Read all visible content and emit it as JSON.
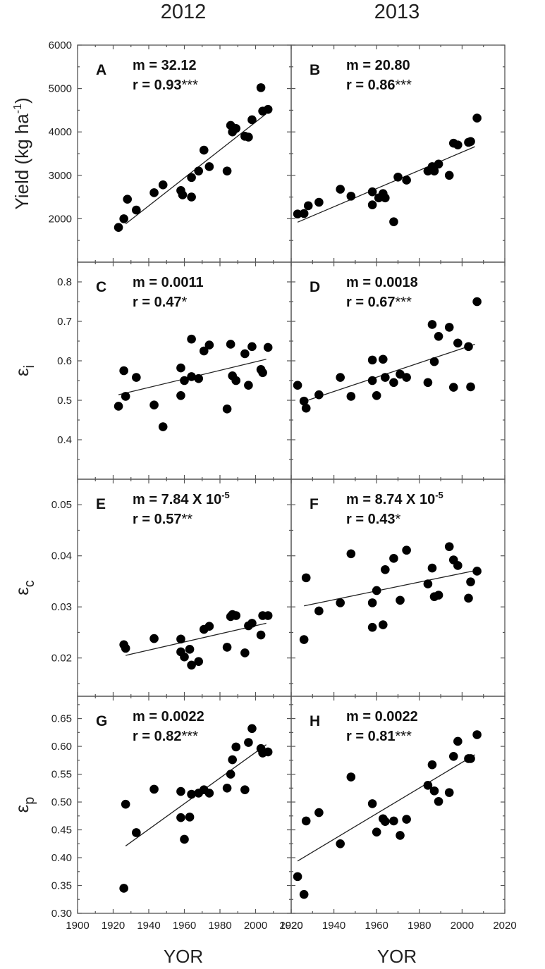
{
  "figure": {
    "col_titles": [
      "2012",
      "2013"
    ],
    "xlabel": "YOR",
    "x_ticks": [
      "1900",
      "1920",
      "1940",
      "1960",
      "1980",
      "2000",
      "2020"
    ]
  },
  "chart_data": [
    {
      "panel": "A",
      "type": "scatter",
      "year": "2012",
      "row": "yield",
      "ylabel": "Yield (kg ha",
      "ylabel_sup": "-1",
      "ylabel_tail": ")",
      "ylim": [
        1000,
        6000
      ],
      "xlim": [
        1900,
        2020
      ],
      "y_ticks": [
        2000,
        3000,
        4000,
        5000,
        6000
      ],
      "y_tick_labels": [
        "2000",
        "3000",
        "4000",
        "5000",
        "6000"
      ],
      "stat_m": "m = 32.12",
      "stat_m_sup": "",
      "stat_r": "r = 0.93",
      "stat_r_sig": "***",
      "trend": {
        "x": [
          1927,
          2006
        ],
        "y": [
          1880,
          4420
        ]
      },
      "points": [
        {
          "x": 1923,
          "y": 1800
        },
        {
          "x": 1926,
          "y": 2000
        },
        {
          "x": 1928,
          "y": 2450
        },
        {
          "x": 1933,
          "y": 2200
        },
        {
          "x": 1943,
          "y": 2600
        },
        {
          "x": 1948,
          "y": 2780
        },
        {
          "x": 1958,
          "y": 2650
        },
        {
          "x": 1959,
          "y": 2550
        },
        {
          "x": 1964,
          "y": 2500
        },
        {
          "x": 1964,
          "y": 2950
        },
        {
          "x": 1968,
          "y": 3100
        },
        {
          "x": 1971,
          "y": 3580
        },
        {
          "x": 1974,
          "y": 3200
        },
        {
          "x": 1984,
          "y": 3100
        },
        {
          "x": 1986,
          "y": 4150
        },
        {
          "x": 1987,
          "y": 4000
        },
        {
          "x": 1989,
          "y": 4080
        },
        {
          "x": 1994,
          "y": 3900
        },
        {
          "x": 1996,
          "y": 3880
        },
        {
          "x": 1998,
          "y": 4280
        },
        {
          "x": 2003,
          "y": 5020
        },
        {
          "x": 2004,
          "y": 4480
        },
        {
          "x": 2007,
          "y": 4520
        }
      ]
    },
    {
      "panel": "B",
      "type": "scatter",
      "year": "2013",
      "row": "yield",
      "ylim": [
        1000,
        6000
      ],
      "xlim": [
        1920,
        2020
      ],
      "stat_m": "m = 20.80",
      "stat_m_sup": "",
      "stat_r": "r = 0.86",
      "stat_r_sig": "***",
      "trend": {
        "x": [
          1923,
          2006
        ],
        "y": [
          1920,
          3660
        ]
      },
      "points": [
        {
          "x": 1923,
          "y": 2110
        },
        {
          "x": 1926,
          "y": 2120
        },
        {
          "x": 1928,
          "y": 2300
        },
        {
          "x": 1933,
          "y": 2380
        },
        {
          "x": 1943,
          "y": 2680
        },
        {
          "x": 1948,
          "y": 2520
        },
        {
          "x": 1958,
          "y": 2620
        },
        {
          "x": 1958,
          "y": 2320
        },
        {
          "x": 1961,
          "y": 2480
        },
        {
          "x": 1963,
          "y": 2580
        },
        {
          "x": 1964,
          "y": 2480
        },
        {
          "x": 1968,
          "y": 1930
        },
        {
          "x": 1970,
          "y": 2960
        },
        {
          "x": 1974,
          "y": 2890
        },
        {
          "x": 1984,
          "y": 3100
        },
        {
          "x": 1986,
          "y": 3200
        },
        {
          "x": 1987,
          "y": 3100
        },
        {
          "x": 1989,
          "y": 3260
        },
        {
          "x": 1994,
          "y": 3000
        },
        {
          "x": 1996,
          "y": 3740
        },
        {
          "x": 1998,
          "y": 3700
        },
        {
          "x": 2003,
          "y": 3760
        },
        {
          "x": 2004,
          "y": 3780
        },
        {
          "x": 2007,
          "y": 4320
        }
      ]
    },
    {
      "panel": "C",
      "type": "scatter",
      "year": "2012",
      "row": "ei",
      "ylabel": "ε",
      "ylabel_sub": "i",
      "ylim": [
        0.3,
        0.85
      ],
      "xlim": [
        1900,
        2020
      ],
      "y_ticks": [
        0.4,
        0.5,
        0.6,
        0.7,
        0.8
      ],
      "y_tick_labels": [
        "0.4",
        "0.5",
        "0.6",
        "0.7",
        "0.8"
      ],
      "stat_m": "m = 0.0011",
      "stat_m_sup": "",
      "stat_r": "r = 0.47",
      "stat_r_sig": "*",
      "trend": {
        "x": [
          1923,
          2006
        ],
        "y": [
          0.514,
          0.604
        ]
      },
      "points": [
        {
          "x": 1923,
          "y": 0.485
        },
        {
          "x": 1926,
          "y": 0.575
        },
        {
          "x": 1927,
          "y": 0.51
        },
        {
          "x": 1933,
          "y": 0.558
        },
        {
          "x": 1943,
          "y": 0.488
        },
        {
          "x": 1948,
          "y": 0.433
        },
        {
          "x": 1958,
          "y": 0.582
        },
        {
          "x": 1958,
          "y": 0.512
        },
        {
          "x": 1960,
          "y": 0.55
        },
        {
          "x": 1964,
          "y": 0.655
        },
        {
          "x": 1964,
          "y": 0.56
        },
        {
          "x": 1968,
          "y": 0.555
        },
        {
          "x": 1971,
          "y": 0.625
        },
        {
          "x": 1974,
          "y": 0.64
        },
        {
          "x": 1984,
          "y": 0.478
        },
        {
          "x": 1986,
          "y": 0.642
        },
        {
          "x": 1987,
          "y": 0.562
        },
        {
          "x": 1989,
          "y": 0.55
        },
        {
          "x": 1994,
          "y": 0.618
        },
        {
          "x": 1996,
          "y": 0.538
        },
        {
          "x": 1998,
          "y": 0.636
        },
        {
          "x": 2003,
          "y": 0.578
        },
        {
          "x": 2004,
          "y": 0.57
        },
        {
          "x": 2007,
          "y": 0.634
        }
      ]
    },
    {
      "panel": "D",
      "type": "scatter",
      "year": "2013",
      "row": "ei",
      "ylim": [
        0.3,
        0.85
      ],
      "xlim": [
        1920,
        2020
      ],
      "stat_m": "m = 0.0018",
      "stat_m_sup": "",
      "stat_r": "r = 0.67",
      "stat_r_sig": "***",
      "trend": {
        "x": [
          1925,
          2006
        ],
        "y": [
          0.495,
          0.642
        ]
      },
      "points": [
        {
          "x": 1923,
          "y": 0.538
        },
        {
          "x": 1926,
          "y": 0.498
        },
        {
          "x": 1927,
          "y": 0.48
        },
        {
          "x": 1933,
          "y": 0.514
        },
        {
          "x": 1943,
          "y": 0.558
        },
        {
          "x": 1948,
          "y": 0.51
        },
        {
          "x": 1958,
          "y": 0.602
        },
        {
          "x": 1958,
          "y": 0.55
        },
        {
          "x": 1960,
          "y": 0.512
        },
        {
          "x": 1963,
          "y": 0.604
        },
        {
          "x": 1964,
          "y": 0.558
        },
        {
          "x": 1968,
          "y": 0.545
        },
        {
          "x": 1971,
          "y": 0.566
        },
        {
          "x": 1974,
          "y": 0.558
        },
        {
          "x": 1984,
          "y": 0.545
        },
        {
          "x": 1986,
          "y": 0.692
        },
        {
          "x": 1987,
          "y": 0.598
        },
        {
          "x": 1989,
          "y": 0.662
        },
        {
          "x": 1994,
          "y": 0.685
        },
        {
          "x": 1996,
          "y": 0.533
        },
        {
          "x": 1998,
          "y": 0.645
        },
        {
          "x": 2003,
          "y": 0.636
        },
        {
          "x": 2004,
          "y": 0.534
        },
        {
          "x": 2007,
          "y": 0.75
        }
      ]
    },
    {
      "panel": "E",
      "type": "scatter",
      "year": "2012",
      "row": "ec",
      "ylabel": "ε",
      "ylabel_sub": "c",
      "ylim": [
        0.0125,
        0.055
      ],
      "xlim": [
        1900,
        2020
      ],
      "y_ticks": [
        0.02,
        0.03,
        0.04,
        0.05
      ],
      "y_tick_labels": [
        "0.02",
        "0.03",
        "0.04",
        "0.05"
      ],
      "stat_m": "m = 7.84 X 10",
      "stat_m_sup": "-5",
      "stat_r": "r = 0.57",
      "stat_r_sig": "**",
      "trend": {
        "x": [
          1927,
          2006
        ],
        "y": [
          0.0205,
          0.0268
        ]
      },
      "points": [
        {
          "x": 1926,
          "y": 0.0226
        },
        {
          "x": 1927,
          "y": 0.0219
        },
        {
          "x": 1943,
          "y": 0.0238
        },
        {
          "x": 1958,
          "y": 0.0237
        },
        {
          "x": 1958,
          "y": 0.0212
        },
        {
          "x": 1960,
          "y": 0.0202
        },
        {
          "x": 1963,
          "y": 0.0217
        },
        {
          "x": 1964,
          "y": 0.0186
        },
        {
          "x": 1968,
          "y": 0.0193
        },
        {
          "x": 1971,
          "y": 0.0256
        },
        {
          "x": 1974,
          "y": 0.0262
        },
        {
          "x": 1984,
          "y": 0.0221
        },
        {
          "x": 1986,
          "y": 0.0281
        },
        {
          "x": 1987,
          "y": 0.0285
        },
        {
          "x": 1989,
          "y": 0.0283
        },
        {
          "x": 1994,
          "y": 0.021
        },
        {
          "x": 1996,
          "y": 0.0263
        },
        {
          "x": 1998,
          "y": 0.0268
        },
        {
          "x": 2003,
          "y": 0.0245
        },
        {
          "x": 2004,
          "y": 0.0283
        },
        {
          "x": 2007,
          "y": 0.0283
        }
      ]
    },
    {
      "panel": "F",
      "type": "scatter",
      "year": "2013",
      "row": "ec",
      "ylim": [
        0.0125,
        0.055
      ],
      "xlim": [
        1920,
        2020
      ],
      "stat_m": "m = 8.74 X 10",
      "stat_m_sup": "-5",
      "stat_r": "r = 0.43",
      "stat_r_sig": "*",
      "trend": {
        "x": [
          1926,
          2006
        ],
        "y": [
          0.0302,
          0.0371
        ]
      },
      "points": [
        {
          "x": 1926,
          "y": 0.0236
        },
        {
          "x": 1927,
          "y": 0.0357
        },
        {
          "x": 1933,
          "y": 0.0292
        },
        {
          "x": 1943,
          "y": 0.0308
        },
        {
          "x": 1948,
          "y": 0.0404
        },
        {
          "x": 1958,
          "y": 0.026
        },
        {
          "x": 1958,
          "y": 0.0308
        },
        {
          "x": 1960,
          "y": 0.0332
        },
        {
          "x": 1963,
          "y": 0.0265
        },
        {
          "x": 1964,
          "y": 0.0373
        },
        {
          "x": 1968,
          "y": 0.0395
        },
        {
          "x": 1971,
          "y": 0.0313
        },
        {
          "x": 1974,
          "y": 0.0411
        },
        {
          "x": 1984,
          "y": 0.0345
        },
        {
          "x": 1986,
          "y": 0.0376
        },
        {
          "x": 1987,
          "y": 0.032
        },
        {
          "x": 1989,
          "y": 0.0323
        },
        {
          "x": 1994,
          "y": 0.0418
        },
        {
          "x": 1996,
          "y": 0.0392
        },
        {
          "x": 1998,
          "y": 0.0381
        },
        {
          "x": 2003,
          "y": 0.0317
        },
        {
          "x": 2004,
          "y": 0.0349
        },
        {
          "x": 2007,
          "y": 0.037
        }
      ]
    },
    {
      "panel": "G",
      "type": "scatter",
      "year": "2012",
      "row": "ep",
      "ylabel": "ε",
      "ylabel_sub": "p",
      "ylim": [
        0.3,
        0.69
      ],
      "xlim": [
        1900,
        2020
      ],
      "y_ticks": [
        0.3,
        0.35,
        0.4,
        0.45,
        0.5,
        0.55,
        0.6,
        0.65
      ],
      "y_tick_labels": [
        "0.30",
        "0.35",
        "0.40",
        "0.45",
        "0.50",
        "0.55",
        "0.60",
        "0.65"
      ],
      "stat_m": "m = 0.0022",
      "stat_m_sup": "",
      "stat_r": "r = 0.82",
      "stat_r_sig": "***",
      "trend": {
        "x": [
          1927,
          2006
        ],
        "y": [
          0.421,
          0.603
        ]
      },
      "points": [
        {
          "x": 1926,
          "y": 0.345
        },
        {
          "x": 1927,
          "y": 0.496
        },
        {
          "x": 1933,
          "y": 0.445
        },
        {
          "x": 1943,
          "y": 0.523
        },
        {
          "x": 1958,
          "y": 0.519
        },
        {
          "x": 1958,
          "y": 0.472
        },
        {
          "x": 1960,
          "y": 0.433
        },
        {
          "x": 1963,
          "y": 0.473
        },
        {
          "x": 1964,
          "y": 0.514
        },
        {
          "x": 1968,
          "y": 0.516
        },
        {
          "x": 1971,
          "y": 0.522
        },
        {
          "x": 1974,
          "y": 0.516
        },
        {
          "x": 1984,
          "y": 0.525
        },
        {
          "x": 1986,
          "y": 0.55
        },
        {
          "x": 1987,
          "y": 0.576
        },
        {
          "x": 1989,
          "y": 0.599
        },
        {
          "x": 1994,
          "y": 0.522
        },
        {
          "x": 1996,
          "y": 0.607
        },
        {
          "x": 1998,
          "y": 0.632
        },
        {
          "x": 2003,
          "y": 0.596
        },
        {
          "x": 2004,
          "y": 0.588
        },
        {
          "x": 2007,
          "y": 0.59
        }
      ]
    },
    {
      "panel": "H",
      "type": "scatter",
      "year": "2013",
      "row": "ep",
      "ylim": [
        0.3,
        0.69
      ],
      "xlim": [
        1920,
        2020
      ],
      "stat_m": "m = 0.0022",
      "stat_m_sup": "",
      "stat_r": "r = 0.81",
      "stat_r_sig": "***",
      "trend": {
        "x": [
          1923,
          2006
        ],
        "y": [
          0.394,
          0.585
        ]
      },
      "points": [
        {
          "x": 1923,
          "y": 0.366
        },
        {
          "x": 1926,
          "y": 0.334
        },
        {
          "x": 1927,
          "y": 0.466
        },
        {
          "x": 1933,
          "y": 0.481
        },
        {
          "x": 1943,
          "y": 0.425
        },
        {
          "x": 1948,
          "y": 0.545
        },
        {
          "x": 1958,
          "y": 0.497
        },
        {
          "x": 1960,
          "y": 0.446
        },
        {
          "x": 1963,
          "y": 0.47
        },
        {
          "x": 1964,
          "y": 0.465
        },
        {
          "x": 1968,
          "y": 0.466
        },
        {
          "x": 1971,
          "y": 0.44
        },
        {
          "x": 1974,
          "y": 0.469
        },
        {
          "x": 1984,
          "y": 0.53
        },
        {
          "x": 1986,
          "y": 0.567
        },
        {
          "x": 1987,
          "y": 0.52
        },
        {
          "x": 1989,
          "y": 0.501
        },
        {
          "x": 1994,
          "y": 0.517
        },
        {
          "x": 1996,
          "y": 0.582
        },
        {
          "x": 1998,
          "y": 0.609
        },
        {
          "x": 2003,
          "y": 0.578
        },
        {
          "x": 2004,
          "y": 0.578
        },
        {
          "x": 2007,
          "y": 0.621
        }
      ]
    }
  ]
}
